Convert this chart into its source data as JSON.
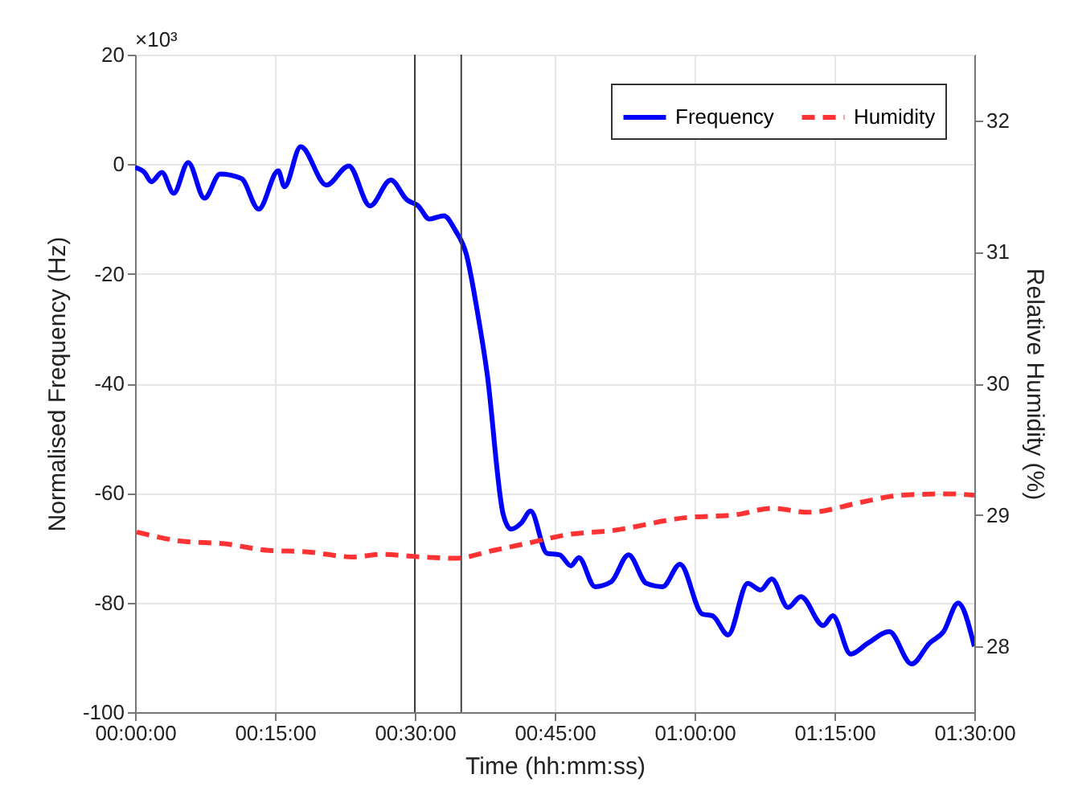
{
  "chart_data": {
    "type": "line",
    "xlabel": "Time (hh:mm:ss)",
    "ylabel": "Normalised Frequency (Hz)",
    "y2label": "Relative Humidity (%)",
    "annotations": [
      "×10³"
    ],
    "xlim": [
      0,
      1.5
    ],
    "xticks": [
      {
        "value": 0,
        "label": "00:00:00"
      },
      {
        "value": 0.25,
        "label": "00:15:00"
      },
      {
        "value": 0.5,
        "label": "00:30:00"
      },
      {
        "value": 0.75,
        "label": "00:45:00"
      },
      {
        "value": 1,
        "label": "01:00:00"
      },
      {
        "value": 1.25,
        "label": "01:15:00"
      },
      {
        "value": 1.5,
        "label": "01:30:00"
      }
    ],
    "ylim": [
      -100,
      20
    ],
    "yticks": [
      -100,
      -80,
      -60,
      -40,
      -20,
      0,
      20
    ],
    "y2lim": [
      27.5,
      32.5
    ],
    "y2ticks": [
      28,
      29,
      30,
      31,
      32
    ],
    "grid": true,
    "legend": "top right",
    "ref_lines": [
      {
        "axis": "x",
        "value": 0.5,
        "label": null,
        "color": "#404040"
      },
      {
        "axis": "x",
        "value": 0.583,
        "label": null,
        "color": "#404040"
      }
    ],
    "series": [
      {
        "name": "Frequency",
        "color": "#0000ff",
        "line_style": "solid",
        "x": [
          0,
          0.017,
          0.029,
          0.048,
          0.069,
          0.095,
          0.124,
          0.152,
          0.19,
          0.221,
          0.256,
          0.267,
          0.296,
          0.342,
          0.382,
          0.42,
          0.457,
          0.486,
          0.506,
          0.526,
          0.552,
          0.572,
          0.592,
          0.612,
          0.629,
          0.658,
          0.672,
          0.69,
          0.707,
          0.736,
          0.759,
          0.779,
          0.793,
          0.822,
          0.851,
          0.882,
          0.914,
          0.943,
          0.974,
          1.014,
          1.032,
          1.06,
          1.095,
          1.118,
          1.138,
          1.167,
          1.19,
          1.23,
          1.247,
          1.279,
          1.31,
          1.348,
          1.388,
          1.42,
          1.445,
          1.471,
          1.5
        ],
        "values": [
          -0.6,
          -1.5,
          -3.2,
          -1.5,
          -5.3,
          0.3,
          -6.2,
          -1.8,
          -2.6,
          -8.2,
          -1.2,
          -4.1,
          3.2,
          -3.8,
          -0.3,
          -7.6,
          -2.9,
          -6.5,
          -7.6,
          -10,
          -9.4,
          -12,
          -16.4,
          -27,
          -38,
          -63.9,
          -66.6,
          -65.5,
          -63.3,
          -71,
          -71.3,
          -73.3,
          -71.8,
          -77.1,
          -76.2,
          -71.3,
          -76.5,
          -77.1,
          -73,
          -82.1,
          -82.4,
          -85.9,
          -76.5,
          -77.7,
          -75.7,
          -80.9,
          -78.9,
          -84.2,
          -82.4,
          -89.4,
          -87.4,
          -85.3,
          -91.2,
          -87.4,
          -85.3,
          -80.1,
          -88
        ]
      },
      {
        "name": "Humidity",
        "color": "#ff3333",
        "line_style": "dashed",
        "axis": "y2",
        "x": [
          0.003,
          0.083,
          0.161,
          0.239,
          0.305,
          0.391,
          0.44,
          0.514,
          0.572,
          0.641,
          0.707,
          0.773,
          0.851,
          0.986,
          1.072,
          1.138,
          1.204,
          1.302,
          1.368,
          1.454,
          1.5
        ],
        "values": [
          28.87,
          28.8,
          28.78,
          28.73,
          28.72,
          28.68,
          28.7,
          28.68,
          28.67,
          28.73,
          28.79,
          28.85,
          28.88,
          28.98,
          29.0,
          29.05,
          29.02,
          29.1,
          29.15,
          29.16,
          29.15
        ]
      }
    ]
  }
}
